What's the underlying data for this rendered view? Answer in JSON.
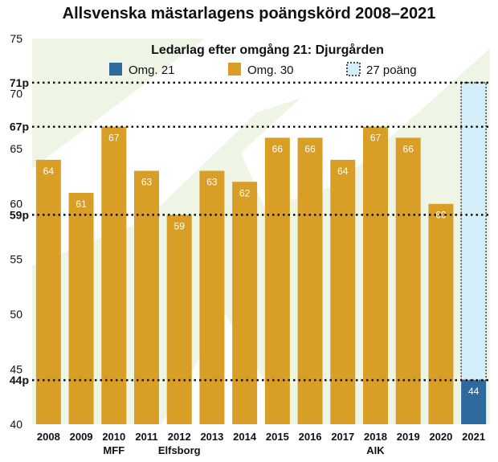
{
  "chart_data": {
    "type": "bar",
    "title": "Allsvenska mästarlagens poängskörd 2008–2021",
    "legend_title": "Ledarlag efter omgång 21: Djurgården",
    "categories": [
      "2008",
      "2009",
      "2010",
      "2011",
      "2012",
      "2013",
      "2014",
      "2015",
      "2016",
      "2017",
      "2018",
      "2019",
      "2020",
      "2021"
    ],
    "team_labels": [
      "",
      "",
      "MFF",
      "",
      "Elfsborg",
      "",
      "",
      "",
      "",
      "",
      "AIK",
      "",
      "",
      ""
    ],
    "series": [
      {
        "name": "Omg. 30",
        "values": [
          64,
          61,
          67,
          63,
          59,
          63,
          62,
          66,
          66,
          64,
          67,
          66,
          60,
          null
        ]
      },
      {
        "name": "Omg. 21",
        "values": [
          null,
          null,
          null,
          null,
          null,
          null,
          null,
          null,
          null,
          null,
          null,
          null,
          null,
          44
        ]
      },
      {
        "name": "27 poäng",
        "base": 44,
        "top": 71
      }
    ],
    "bar_labels": [
      "64",
      "61",
      "67",
      "63",
      "59",
      "63",
      "62",
      "66",
      "66",
      "64",
      "67",
      "66",
      "60",
      "44"
    ],
    "y_ticks": [
      "40",
      "45",
      "50",
      "55",
      "60",
      "65",
      "70",
      "75"
    ],
    "y_tick_values": [
      40,
      45,
      50,
      55,
      60,
      65,
      70,
      75
    ],
    "ref_lines": [
      {
        "label": "71p",
        "value": 71
      },
      {
        "label": "67p",
        "value": 67
      },
      {
        "label": "59p",
        "value": 59
      },
      {
        "label": "44p",
        "value": 44
      }
    ],
    "ylim": [
      40,
      75
    ],
    "colors": {
      "omg30": "#D89E26",
      "omg21": "#2E6A9E",
      "poang27": "#D4EEFA",
      "background": "#EEF5E4",
      "watermark": "#FFFFFF"
    }
  }
}
